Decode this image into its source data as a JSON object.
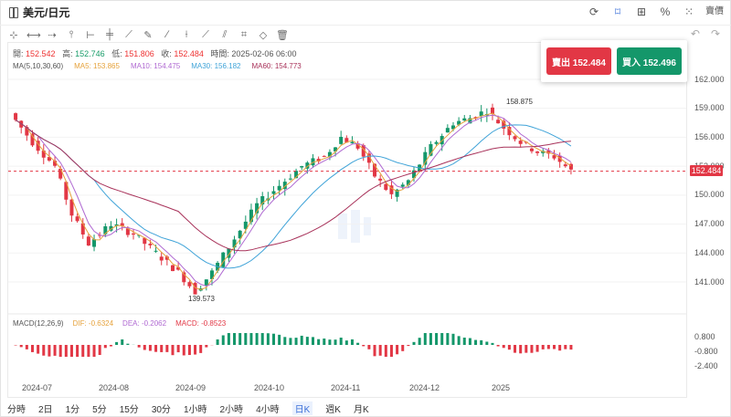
{
  "header": {
    "symbol": "美元/日元"
  },
  "top_tools": [
    {
      "icon": "refresh-icon"
    },
    {
      "icon": "bookmark-icon"
    },
    {
      "icon": "chart-type-icon"
    },
    {
      "icon": "percent-icon"
    },
    {
      "icon": "grid-icon"
    },
    {
      "label": "賣價"
    }
  ],
  "draw_tools": [
    "crosshair-icon",
    "hline-icon",
    "trend-icon",
    "vline-icon",
    "channel-icon",
    "parallel-icon",
    "ray-icon",
    "pen-icon",
    "fib-icon",
    "measure-icon",
    "text-icon",
    "shape-icon",
    "tag-icon",
    "eraser-icon",
    "trash-icon"
  ],
  "ohlc": {
    "open_label": "開:",
    "open": "152.542",
    "high_label": "高:",
    "high": "152.746",
    "low_label": "低:",
    "low": "151.806",
    "close_label": "收:",
    "close": "152.484",
    "time_label": "時間:",
    "time": "2025-02-06 06:00"
  },
  "ma": {
    "label": "MA(5,10,30,60)",
    "ma5": "MA5: 153.865",
    "ma10": "MA10: 154.475",
    "ma30": "MA30: 156.182",
    "ma60": "MA60: 154.773"
  },
  "macd": {
    "label": "MACD(12,26,9)",
    "dif": "DIF: -0.6324",
    "dea": "DEA: -0.2062",
    "macd": "MACD: -0.8523"
  },
  "trade": {
    "sell": "賣出 152.484",
    "buy": "買入 152.496"
  },
  "price_tag": "152.484",
  "colors": {
    "up": "#14976a",
    "down": "#e23745",
    "ma5": "#e6a23c",
    "ma10": "#b06ad2",
    "ma30": "#3fa3d8",
    "ma60": "#a8325a"
  },
  "periods": [
    "分時",
    "2日",
    "1分",
    "5分",
    "15分",
    "30分",
    "1小時",
    "2小時",
    "4小時",
    "日K",
    "週K",
    "月K"
  ],
  "selected_period": "日K",
  "chart_data": {
    "type": "candlestick",
    "y_ticks": [
      "162.000",
      "159.000",
      "156.000",
      "153.000",
      "150.000",
      "147.000",
      "144.000",
      "141.000"
    ],
    "macd_ticks": [
      "0.800",
      "-0.800",
      "-2.400"
    ],
    "x_ticks": [
      "2024-07",
      "2024-08",
      "2024-09",
      "2024-10",
      "2024-11",
      "2024-12",
      "2025"
    ],
    "annotations": [
      {
        "text": "158.875"
      },
      {
        "text": "139.573"
      }
    ]
  }
}
